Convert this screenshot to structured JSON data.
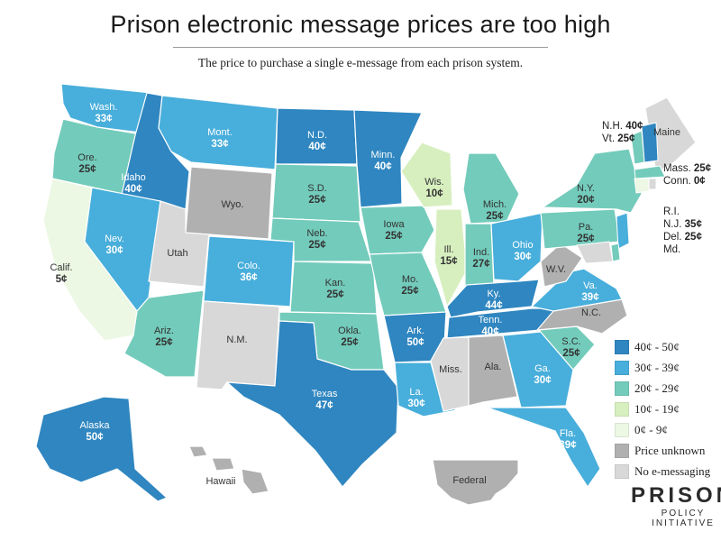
{
  "title": "Prison electronic message prices are too high",
  "subtitle": "The price to purchase a single e-message from each prison system.",
  "colors": {
    "c40": "#2f86c0",
    "c30": "#48aedb",
    "c20": "#73cbbb",
    "c10": "#d7efbf",
    "c0": "#ecf8e4",
    "unknown": "#b0b0b0",
    "none": "#d8d8d8"
  },
  "legend": [
    {
      "key": "c40",
      "label": "40¢ - 50¢"
    },
    {
      "key": "c30",
      "label": "30¢ - 39¢"
    },
    {
      "key": "c20",
      "label": "20¢ - 29¢"
    },
    {
      "key": "c10",
      "label": "10¢ - 19¢"
    },
    {
      "key": "c0",
      "label": "0¢ - 9¢"
    },
    {
      "key": "unknown",
      "label": "Price unknown"
    },
    {
      "key": "none",
      "label": "No e-messaging"
    }
  ],
  "states": [
    {
      "abbr": "Wash.",
      "price": "33¢",
      "cat": "c30"
    },
    {
      "abbr": "Ore.",
      "price": "25¢",
      "cat": "c20"
    },
    {
      "abbr": "Calif.",
      "price": "5¢",
      "cat": "c0"
    },
    {
      "abbr": "Idaho",
      "price": "40¢",
      "cat": "c40"
    },
    {
      "abbr": "Nev.",
      "price": "30¢",
      "cat": "c30"
    },
    {
      "abbr": "Utah",
      "price": "",
      "cat": "none"
    },
    {
      "abbr": "Ariz.",
      "price": "25¢",
      "cat": "c20"
    },
    {
      "abbr": "Mont.",
      "price": "33¢",
      "cat": "c30"
    },
    {
      "abbr": "Wyo.",
      "price": "",
      "cat": "unknown"
    },
    {
      "abbr": "Colo.",
      "price": "36¢",
      "cat": "c30"
    },
    {
      "abbr": "N.M.",
      "price": "",
      "cat": "none"
    },
    {
      "abbr": "N.D.",
      "price": "40¢",
      "cat": "c40"
    },
    {
      "abbr": "S.D.",
      "price": "25¢",
      "cat": "c20"
    },
    {
      "abbr": "Neb.",
      "price": "25¢",
      "cat": "c20"
    },
    {
      "abbr": "Kan.",
      "price": "25¢",
      "cat": "c20"
    },
    {
      "abbr": "Okla.",
      "price": "25¢",
      "cat": "c20"
    },
    {
      "abbr": "Texas",
      "price": "47¢",
      "cat": "c40"
    },
    {
      "abbr": "Minn.",
      "price": "40¢",
      "cat": "c40"
    },
    {
      "abbr": "Iowa",
      "price": "25¢",
      "cat": "c20"
    },
    {
      "abbr": "Mo.",
      "price": "25¢",
      "cat": "c20"
    },
    {
      "abbr": "Ark.",
      "price": "50¢",
      "cat": "c40"
    },
    {
      "abbr": "La.",
      "price": "30¢",
      "cat": "c30"
    },
    {
      "abbr": "Wis.",
      "price": "10¢",
      "cat": "c10"
    },
    {
      "abbr": "Ill.",
      "price": "15¢",
      "cat": "c10"
    },
    {
      "abbr": "Mich.",
      "price": "25¢",
      "cat": "c20"
    },
    {
      "abbr": "Ind.",
      "price": "27¢",
      "cat": "c20"
    },
    {
      "abbr": "Ohio",
      "price": "30¢",
      "cat": "c30"
    },
    {
      "abbr": "Ky.",
      "price": "44¢",
      "cat": "c40"
    },
    {
      "abbr": "Tenn.",
      "price": "40¢",
      "cat": "c40"
    },
    {
      "abbr": "Miss.",
      "price": "",
      "cat": "none"
    },
    {
      "abbr": "Ala.",
      "price": "",
      "cat": "unknown"
    },
    {
      "abbr": "Ga.",
      "price": "30¢",
      "cat": "c30"
    },
    {
      "abbr": "Fla.",
      "price": "39¢",
      "cat": "c30"
    },
    {
      "abbr": "S.C.",
      "price": "25¢",
      "cat": "c20"
    },
    {
      "abbr": "N.C.",
      "price": "",
      "cat": "unknown"
    },
    {
      "abbr": "Va.",
      "price": "39¢",
      "cat": "c30"
    },
    {
      "abbr": "W.V.",
      "price": "",
      "cat": "unknown"
    },
    {
      "abbr": "Pa.",
      "price": "25¢",
      "cat": "c20"
    },
    {
      "abbr": "N.Y.",
      "price": "20¢",
      "cat": "c20"
    },
    {
      "abbr": "Maine",
      "price": "",
      "cat": "none"
    },
    {
      "abbr": "Alaska",
      "price": "50¢",
      "cat": "c40"
    },
    {
      "abbr": "Hawaii",
      "price": "",
      "cat": "unknown"
    },
    {
      "abbr": "Federal",
      "price": "",
      "cat": "unknown"
    }
  ],
  "northeast": [
    {
      "abbr": "N.H.",
      "price": "40¢",
      "cat": "c40"
    },
    {
      "abbr": "Vt.",
      "price": "25¢",
      "cat": "c20"
    },
    {
      "abbr": "Mass.",
      "price": "25¢",
      "cat": "c20"
    },
    {
      "abbr": "Conn.",
      "price": "0¢",
      "cat": "c0"
    },
    {
      "abbr": "R.I.",
      "price": "",
      "cat": "none"
    },
    {
      "abbr": "N.J.",
      "price": "35¢",
      "cat": "c30"
    },
    {
      "abbr": "Del.",
      "price": "25¢",
      "cat": "c20"
    },
    {
      "abbr": "Md.",
      "price": "",
      "cat": "none"
    }
  ],
  "logo": {
    "main": "PRISON",
    "sub": "POLICY INITIATIVE"
  }
}
